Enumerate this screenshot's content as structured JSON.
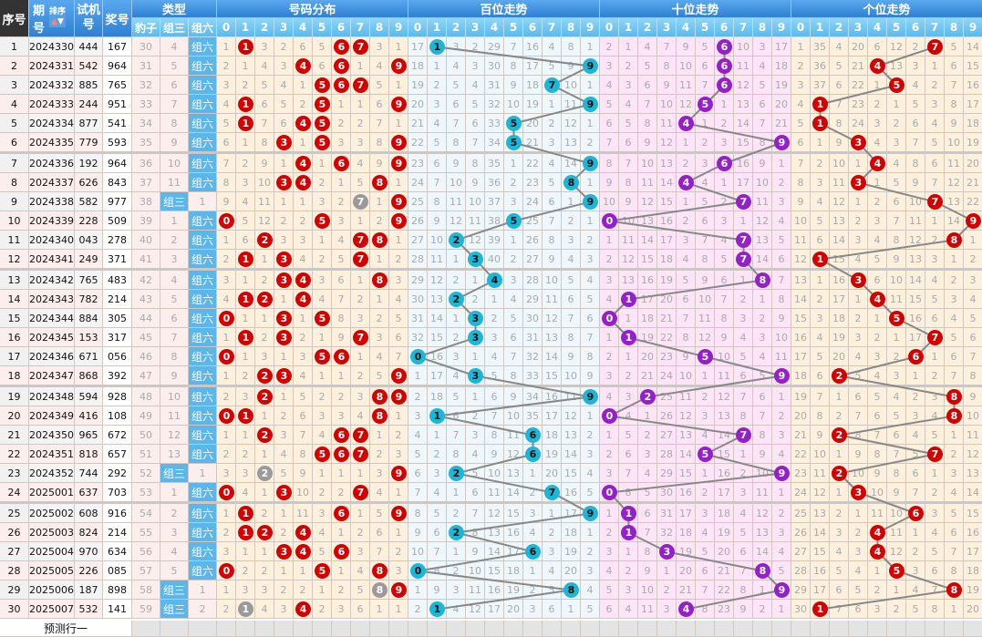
{
  "header": {
    "seq": "序号",
    "period_a": "期",
    "period_b": "号",
    "sort": "排序",
    "trial_a": "试机",
    "trial_b": "号",
    "win": "奖号",
    "type": "类型",
    "dist": "号码分布",
    "hundreds": "百位走势",
    "tens": "十位走势",
    "units": "个位走势",
    "types": [
      "豹子",
      "组三",
      "组六"
    ],
    "digits": [
      "0",
      "1",
      "2",
      "3",
      "4",
      "5",
      "6",
      "7",
      "8",
      "9"
    ]
  },
  "rows": [
    {
      "seq": "1",
      "period": "2024330",
      "trial": "444",
      "win": "167"
    },
    {
      "seq": "2",
      "period": "2024331",
      "trial": "542",
      "win": "964"
    },
    {
      "seq": "3",
      "period": "2024332",
      "trial": "885",
      "win": "765"
    },
    {
      "seq": "4",
      "period": "2024333",
      "trial": "244",
      "win": "951"
    },
    {
      "seq": "5",
      "period": "2024334",
      "trial": "877",
      "win": "541"
    },
    {
      "seq": "6",
      "period": "2024335",
      "trial": "779",
      "win": "593"
    },
    {
      "seq": "7",
      "period": "2024336",
      "trial": "192",
      "win": "964"
    },
    {
      "seq": "8",
      "period": "2024337",
      "trial": "626",
      "win": "843"
    },
    {
      "seq": "9",
      "period": "2024338",
      "trial": "582",
      "win": "977"
    },
    {
      "seq": "10",
      "period": "2024339",
      "trial": "228",
      "win": "509"
    },
    {
      "seq": "11",
      "period": "2024340",
      "trial": "043",
      "win": "278"
    },
    {
      "seq": "12",
      "period": "2024341",
      "trial": "249",
      "win": "371"
    },
    {
      "seq": "13",
      "period": "2024342",
      "trial": "765",
      "win": "483"
    },
    {
      "seq": "14",
      "period": "2024343",
      "trial": "782",
      "win": "214"
    },
    {
      "seq": "15",
      "period": "2024344",
      "trial": "884",
      "win": "305"
    },
    {
      "seq": "16",
      "period": "2024345",
      "trial": "153",
      "win": "317"
    },
    {
      "seq": "17",
      "period": "2024346",
      "trial": "671",
      "win": "056"
    },
    {
      "seq": "18",
      "period": "2024347",
      "trial": "868",
      "win": "392"
    },
    {
      "seq": "19",
      "period": "2024348",
      "trial": "594",
      "win": "928"
    },
    {
      "seq": "20",
      "period": "2024349",
      "trial": "416",
      "win": "108"
    },
    {
      "seq": "21",
      "period": "2024350",
      "trial": "965",
      "win": "672"
    },
    {
      "seq": "22",
      "period": "2024351",
      "trial": "818",
      "win": "657"
    },
    {
      "seq": "23",
      "period": "2024352",
      "trial": "744",
      "win": "292"
    },
    {
      "seq": "24",
      "period": "2025001",
      "trial": "637",
      "win": "703"
    },
    {
      "seq": "25",
      "period": "2025002",
      "trial": "608",
      "win": "916"
    },
    {
      "seq": "26",
      "period": "2025003",
      "trial": "824",
      "win": "214"
    },
    {
      "seq": "27",
      "period": "2025004",
      "trial": "970",
      "win": "634"
    },
    {
      "seq": "28",
      "period": "2025005",
      "trial": "226",
      "win": "085"
    },
    {
      "seq": "29",
      "period": "2025006",
      "trial": "187",
      "win": "898"
    },
    {
      "seq": "30",
      "period": "2025007",
      "trial": "532",
      "win": "141"
    }
  ],
  "type_omission": {
    "baozi": [
      30,
      31,
      32,
      33,
      34,
      35,
      36,
      37,
      38,
      39,
      40,
      41,
      42,
      43,
      44,
      45,
      46,
      47,
      48,
      49,
      50,
      51,
      52,
      53,
      54,
      55,
      56,
      57,
      58,
      59
    ],
    "zusan": [
      4,
      5,
      6,
      7,
      8,
      9,
      10,
      11,
      0,
      1,
      2,
      3,
      4,
      5,
      6,
      7,
      8,
      9,
      10,
      11,
      12,
      13,
      0,
      1,
      2,
      3,
      4,
      5,
      0,
      0
    ],
    "zuliu": [
      0,
      0,
      0,
      0,
      0,
      0,
      0,
      0,
      1,
      0,
      0,
      0,
      0,
      0,
      0,
      0,
      0,
      0,
      0,
      0,
      0,
      0,
      1,
      0,
      0,
      0,
      0,
      0,
      1,
      2
    ]
  },
  "dist_omission": [
    [
      1,
      2,
      3,
      4,
      5,
      6,
      7,
      8,
      9,
      0,
      1,
      2,
      3,
      4,
      0,
      1,
      0,
      1,
      2,
      0,
      1,
      2,
      3,
      0,
      1,
      2,
      3,
      0,
      1,
      2
    ],
    [
      0,
      1,
      2,
      0,
      0,
      1,
      2,
      3,
      4,
      5,
      6,
      0,
      1,
      0,
      1,
      0,
      1,
      2,
      3,
      0,
      1,
      2,
      3,
      4,
      0,
      0,
      1,
      2,
      3,
      0
    ],
    [
      3,
      4,
      5,
      6,
      7,
      8,
      9,
      10,
      11,
      12,
      0,
      1,
      2,
      0,
      1,
      2,
      3,
      0,
      0,
      1,
      0,
      1,
      0,
      1,
      2,
      0,
      1,
      2,
      3,
      4
    ],
    [
      2,
      3,
      4,
      5,
      6,
      0,
      1,
      0,
      1,
      2,
      3,
      0,
      0,
      1,
      0,
      0,
      1,
      0,
      1,
      2,
      3,
      4,
      5,
      0,
      1,
      2,
      0,
      1,
      2,
      3
    ],
    [
      6,
      0,
      1,
      2,
      0,
      1,
      0,
      0,
      1,
      2,
      3,
      4,
      0,
      0,
      1,
      2,
      3,
      4,
      5,
      6,
      7,
      8,
      9,
      10,
      11,
      0,
      0,
      1,
      2,
      0
    ],
    [
      5,
      6,
      0,
      0,
      0,
      0,
      1,
      2,
      3,
      0,
      1,
      2,
      3,
      4,
      0,
      1,
      0,
      1,
      2,
      3,
      4,
      0,
      1,
      2,
      3,
      4,
      5,
      0,
      1,
      2
    ],
    [
      0,
      0,
      0,
      1,
      2,
      3,
      0,
      1,
      2,
      3,
      4,
      5,
      6,
      7,
      8,
      9,
      0,
      1,
      2,
      3,
      0,
      0,
      1,
      2,
      0,
      1,
      0,
      1,
      2,
      3
    ],
    [
      0,
      1,
      0,
      1,
      2,
      3,
      4,
      5,
      0,
      1,
      0,
      0,
      1,
      2,
      3,
      0,
      1,
      2,
      3,
      4,
      0,
      0,
      1,
      0,
      1,
      2,
      3,
      4,
      5,
      6
    ],
    [
      3,
      4,
      5,
      6,
      7,
      8,
      9,
      0,
      1,
      2,
      0,
      1,
      0,
      1,
      2,
      3,
      4,
      5,
      0,
      0,
      1,
      2,
      3,
      4,
      5,
      6,
      7,
      0,
      0,
      1
    ],
    [
      1,
      0,
      1,
      0,
      1,
      0,
      0,
      1,
      0,
      0,
      1,
      2,
      3,
      4,
      5,
      6,
      7,
      0,
      0,
      1,
      2,
      3,
      0,
      1,
      0,
      1,
      2,
      3,
      0,
      1
    ]
  ],
  "hundreds_omission": [
    [
      17,
      18,
      19,
      20,
      21,
      22,
      23,
      24,
      25,
      26,
      27,
      28,
      29,
      30,
      31,
      32,
      0,
      1,
      2,
      3,
      4,
      5,
      6,
      7,
      8,
      9,
      10,
      0,
      1,
      2
    ],
    [
      0,
      1,
      2,
      3,
      4,
      5,
      6,
      7,
      8,
      9,
      10,
      11,
      12,
      13,
      14,
      15,
      16,
      17,
      18,
      0,
      1,
      2,
      3,
      4,
      5,
      6,
      7,
      8,
      9,
      0
    ],
    [
      3,
      4,
      5,
      6,
      7,
      8,
      9,
      10,
      11,
      12,
      0,
      1,
      2,
      0,
      1,
      2,
      3,
      4,
      5,
      6,
      7,
      8,
      0,
      1,
      2,
      0,
      1,
      2,
      3,
      4
    ],
    [
      2,
      3,
      4,
      5,
      6,
      7,
      8,
      9,
      10,
      11,
      12,
      0,
      1,
      2,
      0,
      0,
      1,
      0,
      1,
      2,
      3,
      4,
      5,
      6,
      7,
      8,
      9,
      10,
      11,
      12
    ],
    [
      29,
      30,
      31,
      32,
      33,
      34,
      35,
      36,
      37,
      38,
      39,
      40,
      0,
      1,
      2,
      3,
      4,
      5,
      6,
      7,
      8,
      9,
      10,
      11,
      12,
      13,
      14,
      15,
      16,
      17
    ],
    [
      7,
      8,
      9,
      10,
      0,
      0,
      1,
      2,
      3,
      0,
      1,
      2,
      3,
      4,
      5,
      6,
      7,
      8,
      9,
      10,
      11,
      12,
      13,
      14,
      15,
      16,
      17,
      18,
      19,
      20
    ],
    [
      16,
      17,
      18,
      19,
      20,
      21,
      22,
      23,
      24,
      25,
      26,
      27,
      28,
      29,
      30,
      31,
      32,
      33,
      34,
      35,
      0,
      0,
      1,
      2,
      3,
      4,
      0,
      1,
      2,
      3
    ],
    [
      4,
      5,
      0,
      1,
      2,
      3,
      4,
      5,
      6,
      7,
      8,
      9,
      10,
      11,
      12,
      13,
      14,
      15,
      16,
      17,
      18,
      19,
      20,
      0,
      1,
      2,
      3,
      4,
      5,
      6
    ],
    [
      8,
      9,
      10,
      11,
      12,
      13,
      14,
      0,
      1,
      2,
      3,
      4,
      5,
      6,
      7,
      8,
      9,
      10,
      11,
      12,
      13,
      14,
      15,
      16,
      17,
      18,
      19,
      20,
      0,
      1
    ],
    [
      1,
      0,
      1,
      0,
      1,
      2,
      0,
      1,
      0,
      1,
      2,
      3,
      4,
      5,
      6,
      7,
      8,
      9,
      0,
      1,
      2,
      3,
      4,
      5,
      0,
      1,
      2,
      3,
      4,
      5
    ]
  ],
  "tens_omission": [
    [
      2,
      3,
      4,
      5,
      6,
      7,
      8,
      9,
      10,
      0,
      1,
      2,
      3,
      4,
      0,
      1,
      2,
      3,
      4,
      0,
      1,
      2,
      3,
      0,
      1,
      2,
      3,
      4,
      5,
      6
    ],
    [
      1,
      2,
      3,
      4,
      5,
      6,
      7,
      8,
      9,
      10,
      11,
      12,
      13,
      0,
      1,
      0,
      1,
      2,
      3,
      4,
      5,
      6,
      7,
      8,
      0,
      0,
      1,
      2,
      3,
      4
    ],
    [
      4,
      5,
      6,
      7,
      8,
      9,
      10,
      11,
      12,
      13,
      14,
      15,
      16,
      17,
      18,
      19,
      20,
      21,
      0,
      1,
      2,
      3,
      4,
      5,
      6,
      7,
      8,
      9,
      10,
      11
    ],
    [
      7,
      8,
      9,
      10,
      11,
      12,
      13,
      14,
      15,
      16,
      17,
      18,
      19,
      20,
      21,
      22,
      23,
      24,
      25,
      26,
      27,
      28,
      29,
      30,
      31,
      32,
      0,
      1,
      2,
      3
    ],
    [
      9,
      10,
      11,
      12,
      0,
      1,
      2,
      0,
      1,
      2,
      3,
      4,
      5,
      6,
      7,
      8,
      9,
      10,
      11,
      12,
      13,
      14,
      15,
      16,
      17,
      18,
      19,
      20,
      21,
      0
    ],
    [
      5,
      6,
      7,
      0,
      1,
      2,
      3,
      4,
      5,
      6,
      7,
      8,
      9,
      10,
      11,
      12,
      0,
      1,
      2,
      3,
      4,
      0,
      1,
      2,
      3,
      4,
      5,
      6,
      7,
      8
    ],
    [
      0,
      0,
      0,
      1,
      2,
      3,
      0,
      1,
      2,
      3,
      4,
      5,
      6,
      7,
      8,
      9,
      10,
      11,
      12,
      13,
      14,
      15,
      16,
      17,
      18,
      19,
      20,
      21,
      22,
      23
    ],
    [
      10,
      11,
      12,
      13,
      14,
      15,
      16,
      17,
      0,
      1,
      0,
      0,
      1,
      2,
      3,
      4,
      5,
      6,
      7,
      8,
      0,
      1,
      2,
      3,
      4,
      5,
      6,
      7,
      8,
      9
    ],
    [
      3,
      4,
      5,
      6,
      7,
      8,
      9,
      10,
      11,
      12,
      13,
      14,
      0,
      1,
      2,
      3,
      4,
      5,
      6,
      7,
      8,
      9,
      10,
      11,
      12,
      13,
      14,
      0,
      1,
      2
    ],
    [
      17,
      18,
      19,
      20,
      21,
      0,
      1,
      2,
      3,
      4,
      5,
      6,
      7,
      8,
      9,
      10,
      11,
      0,
      1,
      2,
      3,
      4,
      0,
      1,
      2,
      3,
      4,
      5,
      0,
      1
    ]
  ],
  "units_omission": [
    [
      1,
      2,
      3,
      4,
      5,
      6,
      7,
      8,
      9,
      10,
      11,
      12,
      13,
      14,
      15,
      16,
      17,
      18,
      19,
      20,
      21,
      22,
      23,
      24,
      25,
      26,
      27,
      28,
      29,
      30
    ],
    [
      35,
      36,
      37,
      0,
      0,
      1,
      2,
      3,
      4,
      5,
      6,
      0,
      1,
      2,
      3,
      4,
      5,
      6,
      7,
      8,
      9,
      10,
      11,
      12,
      13,
      14,
      15,
      16,
      17,
      0
    ],
    [
      4,
      5,
      6,
      7,
      8,
      9,
      10,
      11,
      12,
      13,
      14,
      15,
      16,
      17,
      18,
      19,
      20,
      0,
      1,
      2,
      0,
      1,
      0,
      1,
      2,
      3,
      4,
      5,
      6,
      7
    ],
    [
      20,
      21,
      22,
      23,
      24,
      0,
      1,
      0,
      1,
      2,
      3,
      4,
      0,
      1,
      2,
      3,
      4,
      5,
      6,
      7,
      8,
      9,
      10,
      0,
      1,
      2,
      3,
      4,
      5,
      6
    ],
    [
      6,
      0,
      1,
      2,
      3,
      4,
      0,
      1,
      2,
      3,
      4,
      5,
      6,
      0,
      1,
      2,
      3,
      4,
      5,
      6,
      7,
      8,
      9,
      10,
      11,
      0,
      0,
      1,
      2,
      3
    ],
    [
      12,
      13,
      0,
      1,
      2,
      3,
      4,
      5,
      6,
      7,
      8,
      9,
      10,
      11,
      0,
      1,
      2,
      3,
      4,
      5,
      6,
      7,
      8,
      9,
      10,
      11,
      12,
      0,
      1,
      2
    ],
    [
      2,
      3,
      4,
      5,
      6,
      7,
      8,
      9,
      10,
      11,
      12,
      13,
      14,
      15,
      16,
      17,
      0,
      1,
      2,
      3,
      4,
      5,
      6,
      7,
      0,
      1,
      2,
      3,
      4,
      5
    ],
    [
      0,
      1,
      2,
      3,
      4,
      5,
      6,
      7,
      0,
      1,
      2,
      3,
      4,
      5,
      6,
      0,
      1,
      2,
      3,
      4,
      5,
      0,
      1,
      2,
      3,
      4,
      5,
      6,
      7,
      8
    ],
    [
      5,
      6,
      7,
      8,
      9,
      10,
      11,
      12,
      13,
      14,
      0,
      1,
      2,
      3,
      4,
      5,
      6,
      7,
      0,
      0,
      1,
      2,
      3,
      4,
      5,
      6,
      7,
      8,
      0,
      1
    ],
    [
      14,
      15,
      16,
      17,
      18,
      19,
      20,
      21,
      22,
      0,
      1,
      2,
      3,
      4,
      5,
      6,
      7,
      8,
      9,
      10,
      11,
      12,
      13,
      14,
      15,
      16,
      17,
      18,
      19,
      20
    ]
  ],
  "footer": {
    "predict_label": "预测行一"
  },
  "colors": {
    "dist_hit": "#d40000",
    "repeat_hit": "#9a9a9a",
    "hundreds_hit": "#1cb6d6",
    "tens_hit": "#9420c8",
    "units_hit": "#d40000",
    "dist_bg": "#fdf0dc",
    "hundreds_bg": "#eef8fc",
    "tens_bg": "#fde4f6",
    "units_bg": "#fdf0dc",
    "type_tag": "#5cb6ea",
    "trend_line": "#888888"
  }
}
